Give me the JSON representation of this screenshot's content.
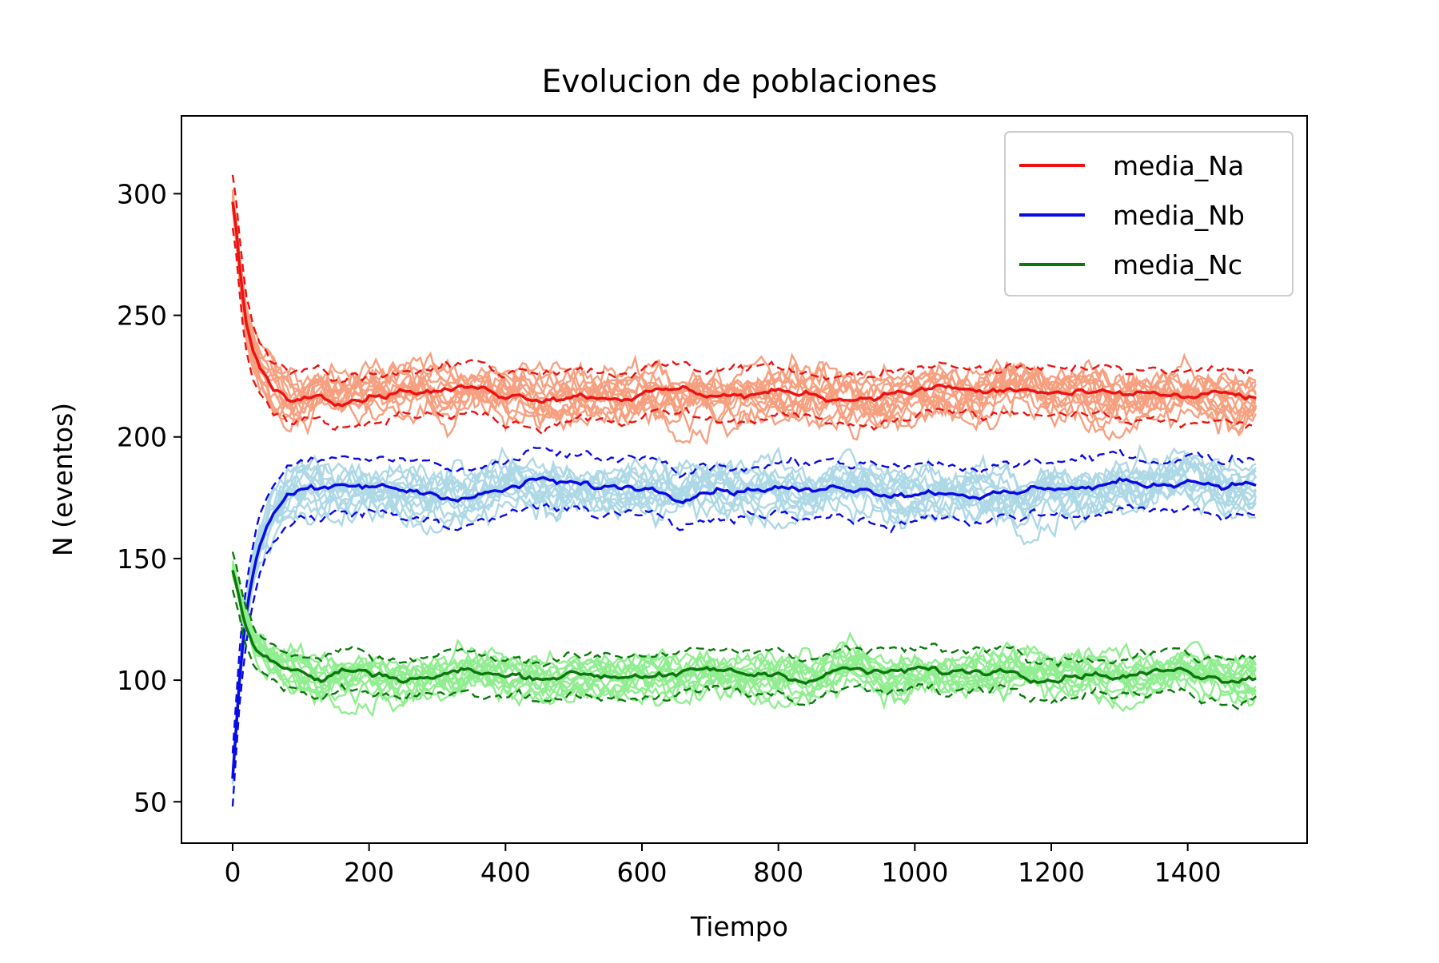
{
  "chart_data": {
    "type": "line",
    "title": "Evolucion de poblaciones",
    "xlabel": "Tiempo",
    "ylabel": "N (eventos)",
    "xlim": [
      -75,
      1575
    ],
    "ylim": [
      33,
      332
    ],
    "xticks": [
      0,
      200,
      400,
      600,
      800,
      1000,
      1200,
      1400
    ],
    "yticks": [
      50,
      100,
      150,
      200,
      250,
      300
    ],
    "grid": false,
    "legend_position": "upper-right",
    "x_end": 1500,
    "series": [
      {
        "name": "media_Na",
        "color": "#ee1111",
        "band_color": "#f7a080",
        "dashed_offset": 10,
        "noise": 12,
        "x": [
          0,
          5,
          10,
          15,
          20,
          30,
          40,
          50,
          60,
          80,
          100,
          130,
          160,
          200,
          250,
          300,
          350,
          400,
          450,
          500,
          550,
          600,
          650,
          700,
          750,
          800,
          850,
          900,
          950,
          1000,
          1050,
          1100,
          1150,
          1200,
          1250,
          1300,
          1350,
          1400,
          1450,
          1500
        ],
        "values": [
          297,
          285,
          270,
          258,
          248,
          236,
          228,
          224,
          220,
          217,
          216,
          219,
          217,
          218,
          220,
          219,
          220,
          218,
          217,
          218,
          217,
          218,
          219,
          218,
          217,
          218,
          218,
          216,
          218,
          219,
          220,
          218,
          219,
          218,
          217,
          216,
          218,
          216,
          217,
          216
        ]
      },
      {
        "name": "media_Nb",
        "color": "#0a0ae6",
        "band_color": "#add8e6",
        "dashed_offset": 11,
        "noise": 12,
        "x": [
          0,
          5,
          10,
          15,
          20,
          30,
          40,
          50,
          60,
          80,
          100,
          130,
          160,
          200,
          250,
          300,
          350,
          400,
          450,
          500,
          550,
          600,
          650,
          700,
          750,
          800,
          850,
          900,
          950,
          1000,
          1050,
          1100,
          1150,
          1200,
          1250,
          1300,
          1350,
          1400,
          1450,
          1500
        ],
        "values": [
          60,
          80,
          100,
          115,
          128,
          145,
          156,
          164,
          170,
          177,
          180,
          178,
          178,
          179,
          178,
          177,
          176,
          178,
          182,
          180,
          179,
          180,
          177,
          180,
          179,
          180,
          177,
          180,
          178,
          178,
          178,
          177,
          176,
          180,
          179,
          181,
          180,
          183,
          181,
          181
        ]
      },
      {
        "name": "media_Nc",
        "color": "#0b790b",
        "band_color": "#90ee90",
        "dashed_offset": 8,
        "noise": 10,
        "x": [
          0,
          5,
          10,
          15,
          20,
          30,
          40,
          50,
          60,
          80,
          100,
          130,
          160,
          200,
          250,
          300,
          350,
          400,
          450,
          500,
          550,
          600,
          650,
          700,
          750,
          800,
          850,
          900,
          950,
          1000,
          1050,
          1100,
          1150,
          1200,
          1250,
          1300,
          1350,
          1400,
          1450,
          1500
        ],
        "values": [
          145,
          140,
          134,
          128,
          123,
          116,
          112,
          110,
          108,
          105,
          103,
          100,
          104,
          103,
          101,
          102,
          104,
          101,
          102,
          103,
          102,
          103,
          101,
          104,
          102,
          103,
          101,
          105,
          102,
          104,
          103,
          104,
          105,
          102,
          104,
          102,
          103,
          104,
          101,
          103
        ]
      }
    ]
  }
}
